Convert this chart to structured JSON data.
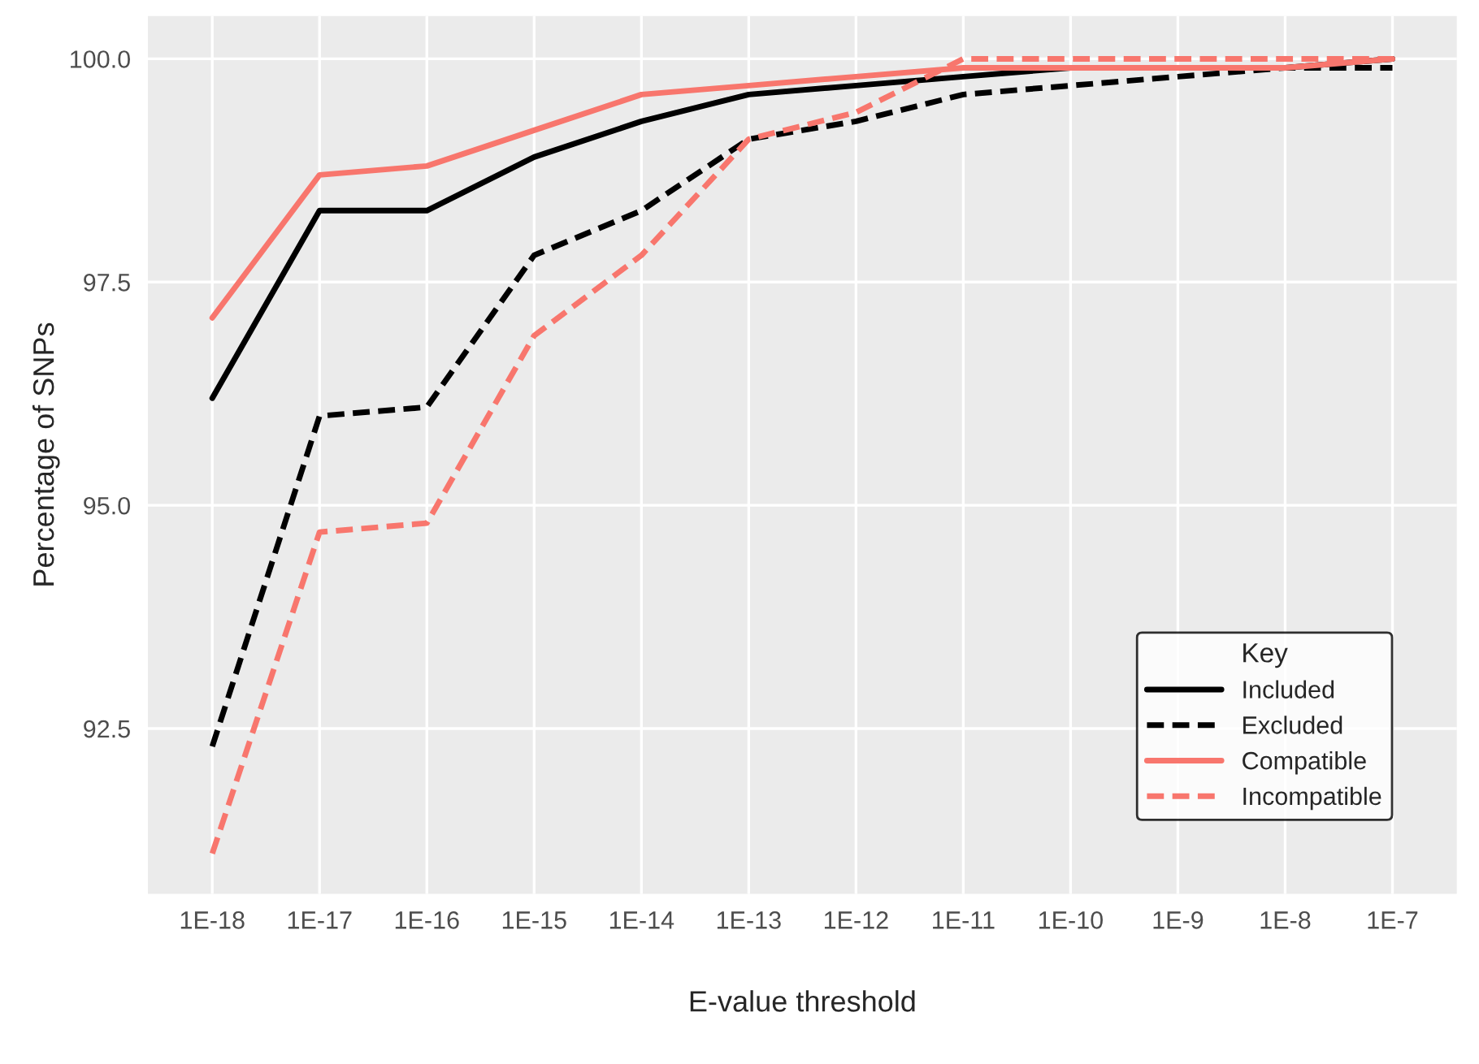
{
  "chart_data": {
    "type": "line",
    "xlabel": "E-value threshold",
    "ylabel": "Percentage of SNPs",
    "legend_title": "Key",
    "legend": "bottom right",
    "grid": true,
    "categories": [
      "1E-18",
      "1E-17",
      "1E-16",
      "1E-15",
      "1E-14",
      "1E-13",
      "1E-12",
      "1E-11",
      "1E-10",
      "1E-9",
      "1E-8",
      "1E-7"
    ],
    "ylim": [
      90.65,
      100.48
    ],
    "yticks": [
      {
        "value": 92.5,
        "label": "92.5"
      },
      {
        "value": 95,
        "label": "95.0"
      },
      {
        "value": 97.5,
        "label": "97.5"
      },
      {
        "value": 100,
        "label": "100.0"
      }
    ],
    "series": [
      {
        "name": "Included",
        "color": "#000000",
        "line_style": "solid",
        "values": [
          96.2,
          98.3,
          98.3,
          98.9,
          99.3,
          99.6,
          99.7,
          99.8,
          99.9,
          99.9,
          99.9,
          100
        ]
      },
      {
        "name": "Excluded",
        "color": "#000000",
        "line_style": "dashed",
        "values": [
          92.3,
          96.0,
          96.1,
          97.8,
          98.3,
          99.1,
          99.3,
          99.6,
          99.7,
          99.8,
          99.9,
          99.9
        ]
      },
      {
        "name": "Compatible",
        "color": "#f8766d",
        "line_style": "solid",
        "values": [
          97.1,
          98.7,
          98.8,
          99.2,
          99.6,
          99.7,
          99.8,
          99.9,
          99.9,
          99.9,
          99.9,
          100
        ]
      },
      {
        "name": "Incompatible",
        "color": "#f8766d",
        "line_style": "dashed",
        "values": [
          91.1,
          94.7,
          94.8,
          96.9,
          97.8,
          99.1,
          99.4,
          100,
          100,
          100,
          100,
          100
        ]
      }
    ]
  }
}
